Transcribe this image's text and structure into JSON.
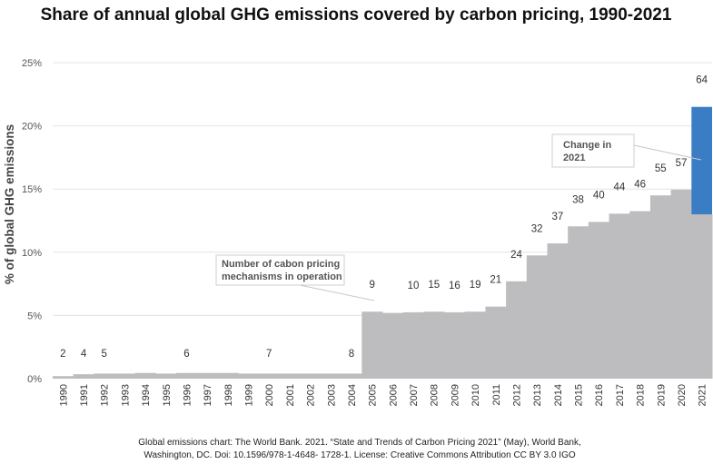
{
  "chart_data": {
    "type": "bar",
    "title": "Share of annual global GHG emissions covered by carbon pricing, 1990-2021",
    "ylabel": "% of global GHG emissions",
    "xlabel": "",
    "ylim": [
      0,
      25
    ],
    "yticks": [
      "0%",
      "5%",
      "10%",
      "15%",
      "20%",
      "25%"
    ],
    "ytick_values": [
      0,
      5,
      10,
      15,
      20,
      25
    ],
    "grid": true,
    "categories": [
      "1990",
      "1991",
      "1992",
      "1993",
      "1994",
      "1995",
      "1996",
      "1997",
      "1998",
      "1999",
      "2000",
      "2001",
      "2002",
      "2003",
      "2004",
      "2005",
      "2006",
      "2007",
      "2008",
      "2009",
      "2010",
      "2011",
      "2012",
      "2013",
      "2014",
      "2015",
      "2016",
      "2017",
      "2018",
      "2019",
      "2020",
      "2021"
    ],
    "series": [
      {
        "values": [
          0.2,
          0.35,
          0.4,
          0.4,
          0.45,
          0.4,
          0.45,
          0.45,
          0.45,
          0.4,
          0.4,
          0.4,
          0.4,
          0.4,
          0.4,
          5.3,
          5.2,
          5.25,
          5.3,
          5.25,
          5.3,
          5.7,
          7.7,
          9.75,
          10.7,
          12.05,
          12.4,
          13.05,
          13.25,
          14.5,
          14.95,
          13.0
        ],
        "color": "#bdbdbf"
      },
      {
        "name": "Change in 2021",
        "values": [
          0,
          0,
          0,
          0,
          0,
          0,
          0,
          0,
          0,
          0,
          0,
          0,
          0,
          0,
          0,
          0,
          0,
          0,
          0,
          0,
          0,
          0,
          0,
          0,
          0,
          0,
          0,
          0,
          0,
          0,
          0,
          8.5
        ],
        "color": "#3a7dc4"
      }
    ],
    "data_labels": [
      {
        "year": "1990",
        "text": "2"
      },
      {
        "year": "1991",
        "text": "4"
      },
      {
        "year": "1992",
        "text": "5"
      },
      {
        "year": "1996",
        "text": "6"
      },
      {
        "year": "2000",
        "text": "7"
      },
      {
        "year": "2004",
        "text": "8"
      },
      {
        "year": "2005",
        "text": "9"
      },
      {
        "year": "2007",
        "text": "10"
      },
      {
        "year": "2008",
        "text": "15"
      },
      {
        "year": "2009",
        "text": "16"
      },
      {
        "year": "2010",
        "text": "19"
      },
      {
        "year": "2011",
        "text": "21"
      },
      {
        "year": "2012",
        "text": "24"
      },
      {
        "year": "2013",
        "text": "32"
      },
      {
        "year": "2014",
        "text": "37"
      },
      {
        "year": "2015",
        "text": "38"
      },
      {
        "year": "2016",
        "text": "40"
      },
      {
        "year": "2017",
        "text": "44"
      },
      {
        "year": "2018",
        "text": "46"
      },
      {
        "year": "2019",
        "text": "55"
      },
      {
        "year": "2020",
        "text": "57"
      },
      {
        "year": "2021",
        "text": "64"
      }
    ],
    "annotations": [
      {
        "lines": [
          "Number of cabon pricing",
          "mechanisms in operation"
        ]
      },
      {
        "lines": [
          "Change in",
          "2021"
        ]
      }
    ]
  },
  "source": {
    "line1": "Global emissions chart: The World Bank. 2021. “State and Trends of Carbon Pricing 2021” (May), World Bank,",
    "line2": "Washington, DC. Doi: 10.1596/978-1-4648- 1728-1. License: Creative Commons Attribution CC BY 3.0 IGO"
  }
}
